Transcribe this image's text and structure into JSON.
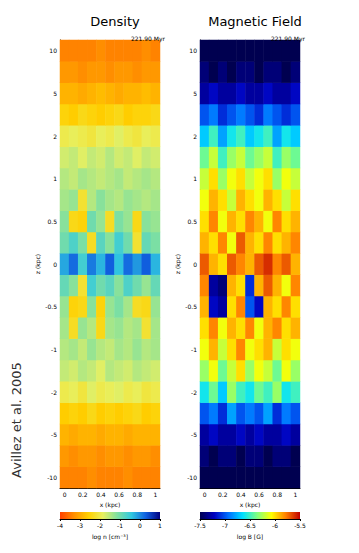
{
  "credit": "Avillez et al. 2005",
  "chart_data": [
    {
      "type": "heatmap",
      "title": "Density",
      "annotation": "221.90 Myr",
      "x_label": "x (kpc)",
      "y_label": "z (kpc)",
      "x": [
        "0",
        null,
        "0.2",
        null,
        "0.4",
        null,
        "0.6",
        null,
        "0.8",
        null,
        "1"
      ],
      "y": [
        "-10",
        null,
        "-5",
        null,
        "-2",
        null,
        "-1",
        null,
        "-0.5",
        null,
        "0",
        null,
        "0.5",
        null,
        "1",
        null,
        "2",
        null,
        "5",
        null,
        "10"
      ],
      "values": [
        [
          -3.4,
          -3.4,
          -3.4,
          -3.3,
          -3.4,
          -3.4,
          -3.4,
          -3.3,
          -3.4,
          -3.4,
          -3.4
        ],
        [
          -3.2,
          -3.3,
          -3.2,
          -3.2,
          -3.3,
          -3.2,
          -3.2,
          -3.3,
          -3.2,
          -3.2,
          -3.3
        ],
        [
          -2.9,
          -3.0,
          -2.9,
          -2.9,
          -3.0,
          -2.9,
          -2.9,
          -3.0,
          -2.9,
          -2.9,
          -2.9
        ],
        [
          -2.6,
          -2.5,
          -2.6,
          -2.4,
          -2.6,
          -2.5,
          -2.6,
          -2.5,
          -2.4,
          -2.6,
          -2.5
        ],
        [
          -2.0,
          -1.9,
          -2.1,
          -1.8,
          -2.0,
          -1.9,
          -1.8,
          -2.0,
          -1.9,
          -2.1,
          -2.0
        ],
        [
          -1.6,
          -1.7,
          -1.5,
          -1.6,
          -1.8,
          -1.5,
          -1.6,
          -1.7,
          -1.5,
          -1.6,
          -1.7
        ],
        [
          -1.5,
          -1.4,
          -1.6,
          -1.3,
          -1.5,
          -1.6,
          -1.4,
          -1.5,
          -1.3,
          -1.5,
          -1.4
        ],
        [
          -1.4,
          -2.3,
          -1.3,
          -1.5,
          -2.4,
          -1.4,
          -1.3,
          -1.5,
          -1.4,
          -2.2,
          -1.4
        ],
        [
          -1.3,
          -2.5,
          -2.4,
          -1.2,
          -2.5,
          -1.3,
          -1.1,
          -1.4,
          -2.3,
          -2.4,
          -1.3
        ],
        [
          -0.9,
          -1.2,
          -2.2,
          -0.6,
          -1.0,
          -0.8,
          -1.2,
          -0.7,
          -1.0,
          -1.3,
          -0.9
        ],
        [
          -0.2,
          0.2,
          -0.6,
          0.1,
          -0.3,
          0.3,
          -0.4,
          0.2,
          -0.1,
          0.3,
          -0.3
        ],
        [
          -1.0,
          -0.7,
          -1.1,
          -2.3,
          -0.8,
          -1.2,
          -0.6,
          -1.0,
          -2.2,
          -0.9,
          -1.1
        ],
        [
          -1.2,
          -2.4,
          -2.5,
          -1.0,
          -1.3,
          -2.3,
          -1.1,
          -1.3,
          -2.4,
          -1.2,
          -1.3
        ],
        [
          -1.4,
          -1.3,
          -2.2,
          -1.5,
          -1.2,
          -1.4,
          -1.5,
          -1.3,
          -1.4,
          -1.5,
          -1.4
        ],
        [
          -1.5,
          -1.6,
          -1.4,
          -1.5,
          -1.6,
          -1.5,
          -1.4,
          -1.6,
          -1.5,
          -1.4,
          -1.5
        ],
        [
          -1.7,
          -1.6,
          -1.8,
          -1.6,
          -1.7,
          -1.5,
          -1.7,
          -1.6,
          -1.8,
          -1.6,
          -1.7
        ],
        [
          -2.0,
          -1.9,
          -2.0,
          -2.1,
          -1.9,
          -2.0,
          -1.8,
          -2.0,
          -2.1,
          -1.9,
          -2.0
        ],
        [
          -2.5,
          -2.6,
          -2.4,
          -2.5,
          -2.6,
          -2.5,
          -2.4,
          -2.6,
          -2.5,
          -2.5,
          -2.4
        ],
        [
          -2.9,
          -2.9,
          -3.0,
          -2.9,
          -2.8,
          -2.9,
          -3.0,
          -2.9,
          -2.9,
          -2.8,
          -2.9
        ],
        [
          -3.2,
          -3.2,
          -3.3,
          -3.2,
          -3.2,
          -3.3,
          -3.2,
          -3.2,
          -3.3,
          -3.2,
          -3.2
        ],
        [
          -3.4,
          -3.4,
          -3.4,
          -3.4,
          -3.3,
          -3.4,
          -3.4,
          -3.4,
          -3.4,
          -3.3,
          -3.4
        ]
      ],
      "colorbar": {
        "label": "log n [cm⁻³]",
        "range": [
          -4,
          1
        ],
        "ticks": [
          -4,
          -3,
          -2,
          -1,
          0,
          1
        ]
      }
    },
    {
      "type": "heatmap",
      "title": "Magnetic Field",
      "annotation": "221.90 Myr",
      "x_label": "x (kpc)",
      "y_label": "z (kpc)",
      "x": [
        "0",
        null,
        "0.2",
        null,
        "0.4",
        null,
        "0.6",
        null,
        "0.8",
        null,
        "1"
      ],
      "y": [
        "-10",
        null,
        "-5",
        null,
        "-2",
        null,
        "-1",
        null,
        "-0.5",
        null,
        "0",
        null,
        "0.5",
        null,
        "1",
        null,
        "2",
        null,
        "5",
        null,
        "10"
      ],
      "values": [
        [
          -7.5,
          -7.5,
          -7.5,
          -7.5,
          -7.5,
          -7.5,
          -7.5,
          -7.5,
          -7.5,
          -7.5,
          -7.5
        ],
        [
          -7.4,
          -7.5,
          -7.4,
          -7.4,
          -7.5,
          -7.4,
          -7.4,
          -7.5,
          -7.4,
          -7.4,
          -7.5
        ],
        [
          -7.3,
          -7.2,
          -7.3,
          -7.3,
          -7.2,
          -7.3,
          -7.2,
          -7.3,
          -7.3,
          -7.2,
          -7.3
        ],
        [
          -7.0,
          -6.9,
          -7.1,
          -6.8,
          -7.0,
          -6.9,
          -7.0,
          -6.8,
          -7.1,
          -6.9,
          -7.0
        ],
        [
          -6.6,
          -6.4,
          -6.7,
          -6.3,
          -6.5,
          -6.6,
          -6.4,
          -6.5,
          -6.3,
          -6.6,
          -6.5
        ],
        [
          -6.3,
          -6.1,
          -6.4,
          -6.2,
          -6.0,
          -6.3,
          -6.1,
          -6.2,
          -6.4,
          -6.1,
          -6.3
        ],
        [
          -6.1,
          -5.9,
          -6.2,
          -6.0,
          -5.8,
          -6.1,
          -6.0,
          -5.9,
          -6.2,
          -6.0,
          -6.1
        ],
        [
          -6.0,
          -5.8,
          -6.1,
          -5.9,
          -6.0,
          -5.8,
          -6.1,
          -5.9,
          -5.8,
          -6.0,
          -5.9
        ],
        [
          -5.9,
          -7.2,
          -7.3,
          -6.0,
          -5.8,
          -7.0,
          -7.2,
          -5.9,
          -6.0,
          -5.8,
          -6.0
        ],
        [
          -5.8,
          -7.3,
          -7.4,
          -5.9,
          -6.0,
          -7.1,
          -5.9,
          -5.7,
          -5.9,
          -6.1,
          -5.8
        ],
        [
          -5.7,
          -5.9,
          -6.0,
          -5.7,
          -5.8,
          -5.9,
          -5.7,
          -5.6,
          -5.8,
          -5.7,
          -5.9
        ],
        [
          -5.9,
          -6.0,
          -5.8,
          -6.1,
          -5.7,
          -5.9,
          -6.0,
          -5.8,
          -6.0,
          -5.9,
          -5.8
        ],
        [
          -6.0,
          -5.8,
          -6.1,
          -5.9,
          -6.0,
          -5.8,
          -5.9,
          -6.1,
          -5.8,
          -6.0,
          -5.9
        ],
        [
          -6.1,
          -5.9,
          -6.0,
          -6.2,
          -5.9,
          -6.0,
          -6.1,
          -5.9,
          -6.0,
          -6.2,
          -6.0
        ],
        [
          -6.2,
          -6.0,
          -6.3,
          -6.1,
          -6.0,
          -6.2,
          -6.1,
          -6.0,
          -6.3,
          -6.1,
          -6.2
        ],
        [
          -6.4,
          -6.2,
          -6.5,
          -6.3,
          -6.2,
          -6.4,
          -6.3,
          -6.2,
          -6.5,
          -6.3,
          -6.4
        ],
        [
          -6.7,
          -6.5,
          -6.8,
          -6.6,
          -6.5,
          -6.7,
          -6.6,
          -6.5,
          -6.8,
          -6.6,
          -6.7
        ],
        [
          -7.0,
          -6.9,
          -7.1,
          -7.0,
          -6.9,
          -7.0,
          -7.1,
          -6.9,
          -7.0,
          -7.1,
          -7.0
        ],
        [
          -7.3,
          -7.2,
          -7.3,
          -7.3,
          -7.2,
          -7.3,
          -7.3,
          -7.2,
          -7.3,
          -7.3,
          -7.2
        ],
        [
          -7.4,
          -7.5,
          -7.4,
          -7.5,
          -7.4,
          -7.4,
          -7.5,
          -7.4,
          -7.4,
          -7.5,
          -7.4
        ],
        [
          -7.5,
          -7.5,
          -7.5,
          -7.5,
          -7.5,
          -7.5,
          -7.5,
          -7.5,
          -7.5,
          -7.5,
          -7.5
        ]
      ],
      "colorbar": {
        "label": "log B [G]",
        "range": [
          -7.5,
          -5.5
        ],
        "ticks": [
          -7.5,
          -7,
          -6.5,
          -6,
          -5.5
        ]
      }
    }
  ]
}
